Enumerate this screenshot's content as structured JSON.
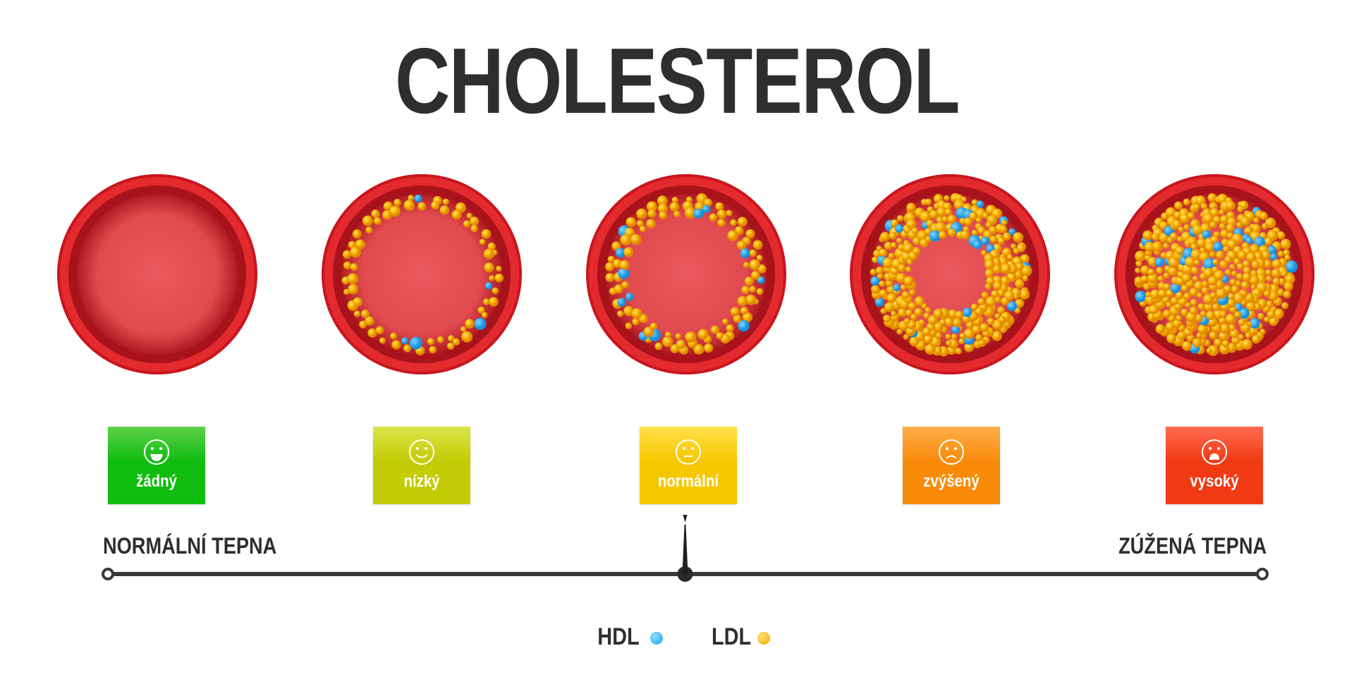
{
  "title": "CHOLESTEROL",
  "levels": [
    {
      "label": "žádný",
      "face": "laughing",
      "color_top": "#5fd04a",
      "color": "#0fbd0f"
    },
    {
      "label": "nízký",
      "face": "smile",
      "color_top": "#dbe44a",
      "color": "#c3cc05"
    },
    {
      "label": "normální",
      "face": "neutral",
      "color_top": "#ffe04a",
      "color": "#f5c800"
    },
    {
      "label": "zvýšený",
      "face": "sad",
      "color_top": "#ffae4a",
      "color": "#f88a0a"
    },
    {
      "label": "vysoký",
      "face": "shocked",
      "color_top": "#ff6a50",
      "color": "#f03a14"
    }
  ],
  "arteries": [
    {
      "stage": "none",
      "plaque": 0
    },
    {
      "stage": "low",
      "plaque": 0.15
    },
    {
      "stage": "normal",
      "plaque": 0.25
    },
    {
      "stage": "elevated",
      "plaque": 0.55
    },
    {
      "stage": "high",
      "plaque": 1.0
    }
  ],
  "scale": {
    "left_label": "NORMÁLNÍ TEPNA",
    "right_label": "ZÚŽENÁ TEPNA",
    "indicator_position": 0.5
  },
  "legend": {
    "hdl": {
      "label": "HDL",
      "color": "#1aa3e8"
    },
    "ldl": {
      "label": "LDL",
      "color": "#f5a800"
    }
  }
}
